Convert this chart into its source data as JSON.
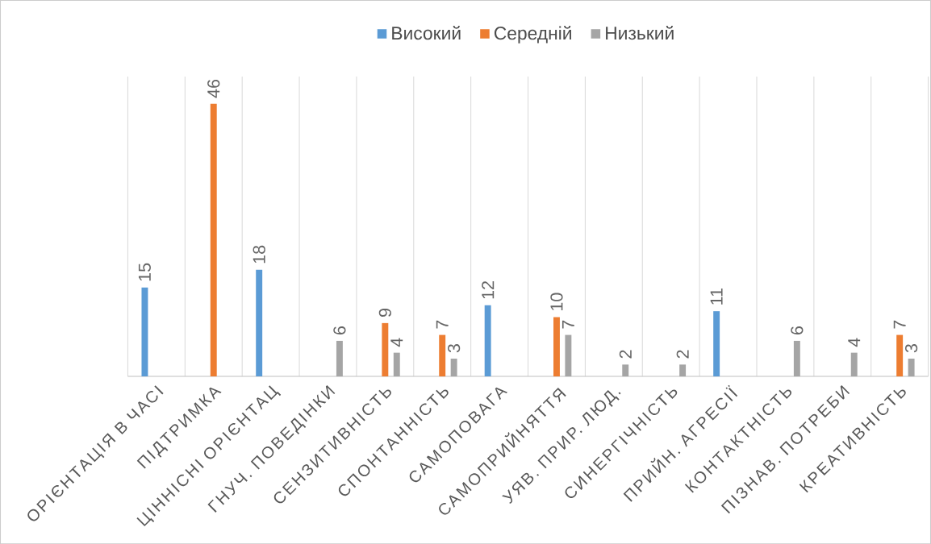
{
  "chart_data": {
    "type": "bar",
    "categories": [
      "ОРІЄНТАЦІЯ В ЧАСІ",
      "ПІДТРИМКА",
      "ЦІННІСНІ ОРІЄНТАЦ",
      "ГНУЧ. ПОВЕДІНКИ",
      "СЕНЗИТИВНІСТЬ",
      "СПОНТАННІСТЬ",
      "САМОПОВАГА",
      "САМОПРИЙНЯТТЯ",
      "УЯВ. ПРИР. ЛЮД.",
      "СИНЕРГІЧНІСТЬ",
      "ПРИЙН. АГРЕСІЇ",
      "КОНТАКТНІСТЬ",
      "ПІЗНАВ. ПОТРЕБИ",
      "КРЕАТИВНІСТЬ"
    ],
    "series": [
      {
        "name": "Високий",
        "color": "#5b9bd5",
        "values": [
          15,
          null,
          18,
          null,
          null,
          null,
          12,
          null,
          null,
          null,
          11,
          null,
          null,
          null
        ]
      },
      {
        "name": "Середній",
        "color": "#ed7d31",
        "values": [
          null,
          46,
          null,
          null,
          9,
          7,
          null,
          10,
          null,
          null,
          null,
          null,
          null,
          7
        ]
      },
      {
        "name": "Низький",
        "color": "#a5a5a5",
        "values": [
          null,
          null,
          null,
          6,
          4,
          3,
          null,
          7,
          2,
          2,
          null,
          6,
          4,
          3
        ]
      }
    ],
    "data_labels": true,
    "grid": "x",
    "legend": "top"
  }
}
